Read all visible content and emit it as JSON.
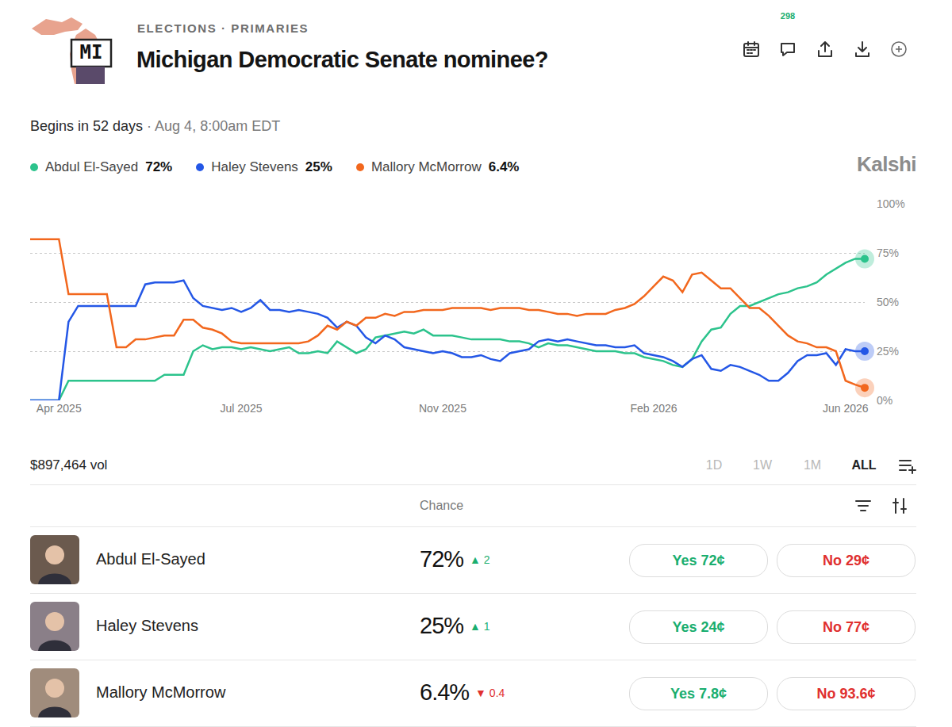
{
  "header": {
    "icon_label": "MI",
    "breadcrumb": "ELECTIONS · PRIMARIES",
    "title": "Michigan Democratic Senate nominee?",
    "comment_count": "298",
    "countdown": "Begins in 52 days",
    "date": "· Aug 4, 8:00am EDT",
    "brand": "Kalshi"
  },
  "chart_data": {
    "type": "line",
    "grid": true,
    "legend": "top",
    "categories": [
      null,
      null,
      null,
      "Apr 2025",
      null,
      null,
      null,
      null,
      null,
      null,
      null,
      null,
      null,
      null,
      null,
      null,
      null,
      null,
      null,
      null,
      null,
      null,
      "Jul 2025",
      null,
      null,
      null,
      null,
      null,
      null,
      null,
      null,
      null,
      null,
      null,
      null,
      null,
      null,
      null,
      null,
      null,
      null,
      null,
      null,
      "Nov 2025",
      null,
      null,
      null,
      null,
      null,
      null,
      null,
      null,
      null,
      null,
      null,
      null,
      null,
      null,
      null,
      null,
      null,
      null,
      null,
      null,
      null,
      "Feb 2026",
      null,
      null,
      null,
      null,
      null,
      null,
      null,
      null,
      null,
      null,
      null,
      null,
      null,
      null,
      null,
      null,
      null,
      null,
      null,
      "Jun 2026",
      null,
      null
    ],
    "series": [
      {
        "name": "Abdul El-Sayed",
        "color": "#2cc38c",
        "values": [
          0,
          0,
          0,
          0,
          10,
          10,
          10,
          10,
          10,
          10,
          10,
          10,
          10,
          10,
          13,
          13,
          13,
          25,
          28,
          26,
          27,
          27,
          26,
          27,
          26,
          25,
          26,
          27,
          24,
          24,
          25,
          24,
          30,
          27,
          24,
          26,
          32,
          33,
          34,
          35,
          34,
          36,
          33,
          33,
          33,
          32,
          31,
          31,
          31,
          31,
          30,
          30,
          29,
          27,
          29,
          28,
          28,
          27,
          26,
          25,
          25,
          25,
          24,
          24,
          22,
          21,
          20,
          18,
          17,
          21,
          30,
          36,
          37,
          44,
          48,
          48,
          50,
          52,
          54,
          55,
          57,
          58,
          60,
          64,
          67,
          70,
          72,
          72
        ]
      },
      {
        "name": "Haley Stevens",
        "color": "#2457e6",
        "values": [
          0,
          0,
          0,
          0,
          40,
          48,
          48,
          48,
          48,
          48,
          48,
          48,
          59,
          60,
          60,
          60,
          61,
          52,
          48,
          47,
          46,
          47,
          45,
          47,
          51,
          46,
          46,
          45,
          46,
          45,
          44,
          42,
          37,
          40,
          38,
          32,
          29,
          33,
          31,
          27,
          26,
          25,
          24,
          25,
          24,
          22,
          22,
          23,
          21,
          20,
          24,
          25,
          26,
          30,
          31,
          30,
          31,
          30,
          29,
          28,
          28,
          27,
          27,
          28,
          24,
          23,
          22,
          20,
          17,
          21,
          23,
          16,
          15,
          18,
          17,
          15,
          13,
          10,
          10,
          14,
          20,
          23,
          23,
          24,
          18,
          26,
          25,
          25
        ]
      },
      {
        "name": "Mallory McMorrow",
        "color": "#f2671d",
        "values": [
          82,
          82,
          82,
          82,
          54,
          54,
          54,
          54,
          54,
          27,
          27,
          31,
          31,
          32,
          33,
          33,
          41,
          41,
          37,
          36,
          34,
          30,
          29,
          29,
          29,
          29,
          29,
          29,
          29,
          30,
          33,
          38,
          36,
          40,
          38,
          42,
          42,
          44,
          43,
          45,
          45,
          46,
          46,
          46,
          47,
          47,
          47,
          47,
          46,
          47,
          47,
          47,
          46,
          46,
          45,
          44,
          44,
          43,
          44,
          44,
          44,
          46,
          47,
          49,
          53,
          58,
          63,
          61,
          55,
          64,
          65,
          61,
          57,
          57,
          52,
          47,
          47,
          43,
          38,
          33,
          30,
          29,
          27,
          27,
          25,
          10,
          8,
          6.4
        ]
      }
    ],
    "ylim": [
      0,
      100
    ],
    "yticks": [
      {
        "value": 0,
        "label": "0%"
      },
      {
        "value": 25,
        "label": "25%"
      },
      {
        "value": 50,
        "label": "50%"
      },
      {
        "value": 75,
        "label": "75%"
      },
      {
        "value": 100,
        "label": "100%"
      }
    ]
  },
  "controls": {
    "volume": "$897,464 vol",
    "ranges": [
      "1D",
      "1W",
      "1M",
      "ALL"
    ],
    "active_range": "ALL"
  },
  "table": {
    "header": "Chance",
    "rows": [
      {
        "name": "Abdul El-Sayed",
        "chance": "72%",
        "change": "▲ 2",
        "direction": "up",
        "yes": "Yes 72¢",
        "no": "No 29¢"
      },
      {
        "name": "Haley Stevens",
        "chance": "25%",
        "change": "▲ 1",
        "direction": "up",
        "yes": "Yes 24¢",
        "no": "No 77¢"
      },
      {
        "name": "Mallory McMorrow",
        "chance": "6.4%",
        "change": "▼ 0.4",
        "direction": "down",
        "yes": "Yes 7.8¢",
        "no": "No 93.6¢"
      }
    ]
  }
}
